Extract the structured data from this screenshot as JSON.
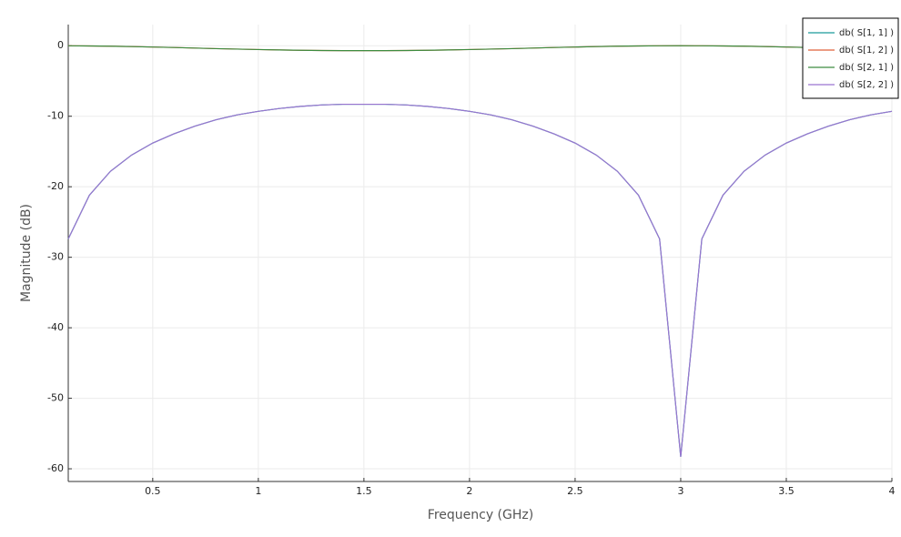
{
  "chart_data": {
    "type": "line",
    "xlabel": "Frequency (GHz)",
    "ylabel": "Magnitude (dB)",
    "x": [
      0.1,
      0.2,
      0.3,
      0.4,
      0.5,
      0.6,
      0.7,
      0.8,
      0.9,
      1.0,
      1.1,
      1.2,
      1.3,
      1.4,
      1.5,
      1.6,
      1.7,
      1.8,
      1.9,
      2.0,
      2.1,
      2.2,
      2.3,
      2.4,
      2.5,
      2.6,
      2.7,
      2.8,
      2.9,
      3.0,
      3.1,
      3.2,
      3.3,
      3.4,
      3.5,
      3.6,
      3.7,
      3.8,
      3.9,
      4.0
    ],
    "series": [
      {
        "name": "db( S[1, 1] )",
        "color": "#1a9a9a",
        "values": [
          -27.4,
          -21.2,
          -17.8,
          -15.5,
          -13.8,
          -12.5,
          -11.4,
          -10.5,
          -9.8,
          -9.3,
          -8.9,
          -8.6,
          -8.4,
          -8.3,
          -8.3,
          -8.3,
          -8.4,
          -8.6,
          -8.9,
          -9.3,
          -9.8,
          -10.5,
          -11.4,
          -12.5,
          -13.8,
          -15.5,
          -17.8,
          -21.2,
          -27.4,
          -58.3,
          -27.4,
          -21.2,
          -17.8,
          -15.5,
          -13.8,
          -12.5,
          -11.4,
          -10.5,
          -9.8,
          -9.3
        ]
      },
      {
        "name": "db( S[1, 2] )",
        "color": "#e0603a",
        "values": [
          -0.01,
          -0.03,
          -0.07,
          -0.12,
          -0.19,
          -0.25,
          -0.33,
          -0.41,
          -0.48,
          -0.54,
          -0.6,
          -0.65,
          -0.68,
          -0.69,
          -0.69,
          -0.69,
          -0.68,
          -0.65,
          -0.6,
          -0.54,
          -0.48,
          -0.41,
          -0.33,
          -0.25,
          -0.19,
          -0.12,
          -0.07,
          -0.03,
          -0.01,
          0,
          -0.01,
          -0.03,
          -0.07,
          -0.12,
          -0.19,
          -0.25,
          -0.33,
          -0.41,
          -0.48,
          -0.54
        ]
      },
      {
        "name": "db( S[2, 1] )",
        "color": "#3d8c40",
        "values": [
          -0.01,
          -0.03,
          -0.07,
          -0.12,
          -0.19,
          -0.25,
          -0.33,
          -0.41,
          -0.48,
          -0.54,
          -0.6,
          -0.65,
          -0.68,
          -0.69,
          -0.69,
          -0.69,
          -0.68,
          -0.65,
          -0.6,
          -0.54,
          -0.48,
          -0.41,
          -0.33,
          -0.25,
          -0.19,
          -0.12,
          -0.07,
          -0.03,
          -0.01,
          0,
          -0.01,
          -0.03,
          -0.07,
          -0.12,
          -0.19,
          -0.25,
          -0.33,
          -0.41,
          -0.48,
          -0.54
        ]
      },
      {
        "name": "db( S[2, 2] )",
        "color": "#9b74d0",
        "values": [
          -27.4,
          -21.2,
          -17.8,
          -15.5,
          -13.8,
          -12.5,
          -11.4,
          -10.5,
          -9.8,
          -9.3,
          -8.9,
          -8.6,
          -8.4,
          -8.3,
          -8.3,
          -8.3,
          -8.4,
          -8.6,
          -8.9,
          -9.3,
          -9.8,
          -10.5,
          -11.4,
          -12.5,
          -13.8,
          -15.5,
          -17.8,
          -21.2,
          -27.4,
          -58.3,
          -27.4,
          -21.2,
          -17.8,
          -15.5,
          -13.8,
          -12.5,
          -11.4,
          -10.5,
          -9.8,
          -9.3
        ]
      }
    ],
    "xlim": [
      0.1,
      4
    ],
    "ylim": [
      -61.8,
      3
    ],
    "xticks": [
      0.5,
      1,
      1.5,
      2,
      2.5,
      3,
      3.5,
      4
    ],
    "yticks": [
      0,
      -10,
      -20,
      -30,
      -40,
      -50,
      -60
    ],
    "grid": true,
    "legend": "top-right"
  }
}
